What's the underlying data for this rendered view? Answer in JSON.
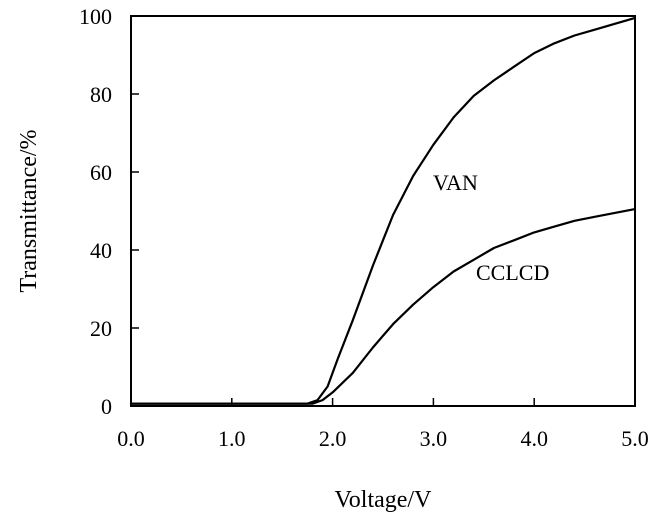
{
  "chart_data": {
    "type": "line",
    "title": "",
    "xlabel": "Voltage/V",
    "ylabel": "Transmittance/%",
    "xlim": [
      0,
      5
    ],
    "ylim": [
      0,
      100
    ],
    "xticks": [
      "0.0",
      "1.0",
      "2.0",
      "3.0",
      "4.0",
      "5.0"
    ],
    "yticks": [
      "0",
      "20",
      "40",
      "60",
      "80",
      "100"
    ],
    "grid": false,
    "series": [
      {
        "name": "VAN",
        "color": "#000000",
        "x": [
          0.0,
          1.0,
          1.5,
          1.75,
          1.85,
          1.95,
          2.05,
          2.2,
          2.4,
          2.6,
          2.8,
          3.0,
          3.2,
          3.4,
          3.6,
          3.8,
          4.0,
          4.2,
          4.4,
          4.6,
          4.8,
          5.0
        ],
        "y": [
          0.6,
          0.6,
          0.6,
          0.6,
          1.5,
          5,
          12,
          22,
          36,
          49,
          59,
          67,
          74,
          79.5,
          83.5,
          87,
          90.5,
          93,
          95,
          96.5,
          98,
          99.5
        ]
      },
      {
        "name": "CCLCD",
        "color": "#000000",
        "x": [
          0.0,
          1.0,
          1.5,
          1.8,
          1.9,
          2.0,
          2.2,
          2.4,
          2.6,
          2.8,
          3.0,
          3.2,
          3.4,
          3.6,
          3.8,
          4.0,
          4.2,
          4.4,
          4.6,
          4.8,
          5.0
        ],
        "y": [
          0.6,
          0.6,
          0.6,
          0.6,
          1.5,
          3.5,
          8.5,
          15,
          21,
          26,
          30.5,
          34.5,
          37.5,
          40.5,
          42.5,
          44.5,
          46,
          47.5,
          48.5,
          49.5,
          50.5
        ]
      }
    ]
  }
}
